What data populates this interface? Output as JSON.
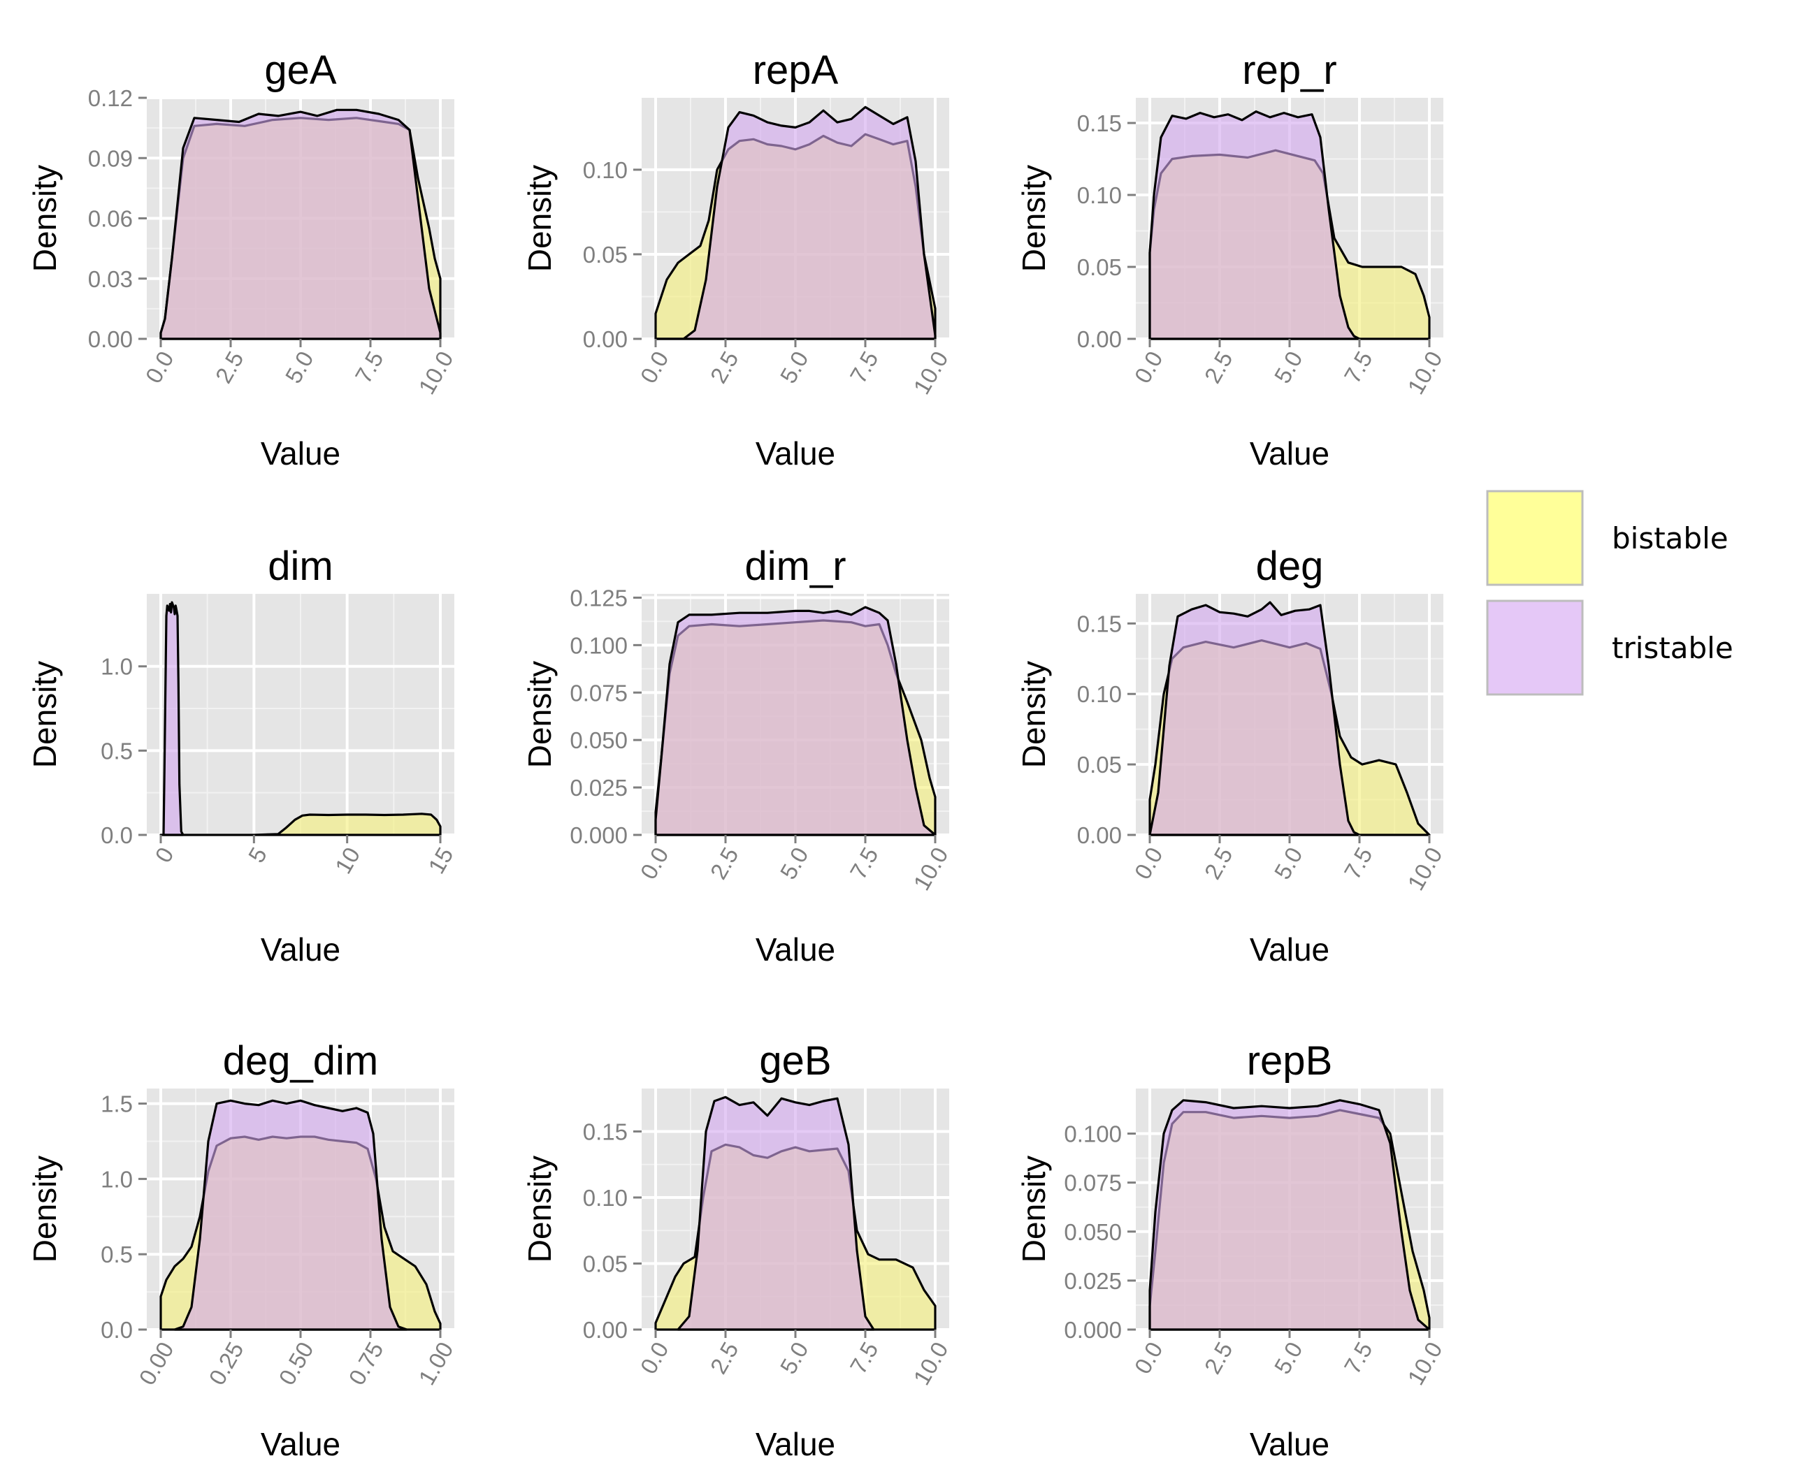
{
  "legend": {
    "position": "right",
    "items": [
      {
        "label": "bistable",
        "color": "#ffff99"
      },
      {
        "label": "tristable",
        "color": "#e5c8f7"
      }
    ]
  },
  "chart_data": [
    {
      "type": "area",
      "title": "geA",
      "xlabel": "Value",
      "ylabel": "Density",
      "xlim": [
        -0.5,
        10.5
      ],
      "ylim": [
        0,
        0.12
      ],
      "xticks": [
        "0.0",
        "2.5",
        "5.0",
        "7.5",
        "10.0"
      ],
      "yticks": [
        "0.00",
        "0.03",
        "0.06",
        "0.09",
        "0.12"
      ],
      "series": [
        {
          "name": "bistable",
          "color": "#f5f07a",
          "x": [
            0,
            0.15,
            0.4,
            0.8,
            1.2,
            2,
            3,
            4,
            5,
            6,
            7,
            8,
            8.5,
            8.9,
            9.2,
            9.6,
            9.8,
            10
          ],
          "y": [
            0.003,
            0.01,
            0.04,
            0.09,
            0.106,
            0.107,
            0.106,
            0.109,
            0.11,
            0.109,
            0.11,
            0.108,
            0.107,
            0.104,
            0.08,
            0.055,
            0.04,
            0.03
          ]
        },
        {
          "name": "tristable",
          "color": "#d2a6ee",
          "x": [
            0,
            0.15,
            0.4,
            0.8,
            1.2,
            2,
            2.8,
            3.5,
            4.2,
            5,
            5.6,
            6.3,
            7,
            7.8,
            8.5,
            8.9,
            9.2,
            9.6,
            10
          ],
          "y": [
            0.003,
            0.01,
            0.04,
            0.095,
            0.11,
            0.109,
            0.108,
            0.112,
            0.111,
            0.113,
            0.111,
            0.114,
            0.114,
            0.112,
            0.109,
            0.104,
            0.07,
            0.025,
            0.003
          ]
        }
      ]
    },
    {
      "type": "area",
      "title": "repA",
      "xlabel": "Value",
      "ylabel": "Density",
      "xlim": [
        -0.5,
        10.5
      ],
      "ylim": [
        0,
        0.1425
      ],
      "xticks": [
        "0.0",
        "2.5",
        "5.0",
        "7.5",
        "10.0"
      ],
      "yticks": [
        "0.00",
        "0.05",
        "0.10"
      ],
      "series": [
        {
          "name": "bistable",
          "color": "#f5f07a",
          "x": [
            0,
            0.4,
            0.8,
            1.2,
            1.6,
            1.9,
            2.2,
            2.6,
            3,
            3.5,
            4,
            4.5,
            5,
            5.5,
            6,
            6.5,
            7,
            7.5,
            8,
            8.5,
            9,
            9.3,
            9.6,
            10
          ],
          "y": [
            0.015,
            0.035,
            0.045,
            0.05,
            0.055,
            0.07,
            0.1,
            0.112,
            0.117,
            0.118,
            0.115,
            0.114,
            0.112,
            0.115,
            0.12,
            0.116,
            0.114,
            0.121,
            0.118,
            0.115,
            0.117,
            0.09,
            0.05,
            0.018
          ]
        },
        {
          "name": "tristable",
          "color": "#d2a6ee",
          "x": [
            0,
            1,
            1.4,
            1.8,
            2.2,
            2.6,
            3,
            3.5,
            4,
            4.5,
            5,
            5.5,
            6,
            6.5,
            7,
            7.5,
            8,
            8.5,
            9,
            9.3,
            9.6,
            10
          ],
          "y": [
            0,
            0,
            0.005,
            0.035,
            0.09,
            0.125,
            0.134,
            0.132,
            0.128,
            0.126,
            0.125,
            0.128,
            0.135,
            0.128,
            0.13,
            0.137,
            0.132,
            0.127,
            0.131,
            0.105,
            0.05,
            0.002
          ]
        }
      ]
    },
    {
      "type": "area",
      "title": "rep_r",
      "xlabel": "Value",
      "ylabel": "Density",
      "xlim": [
        -0.5,
        10.5
      ],
      "ylim": [
        0,
        0.1675
      ],
      "xticks": [
        "0.0",
        "2.5",
        "5.0",
        "7.5",
        "10.0"
      ],
      "yticks": [
        "0.00",
        "0.05",
        "0.10",
        "0.15"
      ],
      "series": [
        {
          "name": "bistable",
          "color": "#f5f07a",
          "x": [
            0,
            0.15,
            0.4,
            0.8,
            1.5,
            2.5,
            3.5,
            4.5,
            5.3,
            5.9,
            6.2,
            6.6,
            7.1,
            7.6,
            8.3,
            9,
            9.5,
            9.8,
            10
          ],
          "y": [
            0.06,
            0.09,
            0.115,
            0.125,
            0.127,
            0.128,
            0.126,
            0.131,
            0.127,
            0.124,
            0.115,
            0.07,
            0.053,
            0.05,
            0.05,
            0.05,
            0.045,
            0.03,
            0.015
          ]
        },
        {
          "name": "tristable",
          "color": "#d2a6ee",
          "x": [
            0,
            0.15,
            0.4,
            0.8,
            1.3,
            1.8,
            2.3,
            2.8,
            3.3,
            3.8,
            4.3,
            4.8,
            5.3,
            5.8,
            6.1,
            6.4,
            6.8,
            7.1,
            7.3,
            7.5
          ],
          "y": [
            0.06,
            0.1,
            0.14,
            0.155,
            0.153,
            0.157,
            0.154,
            0.156,
            0.152,
            0.158,
            0.154,
            0.157,
            0.154,
            0.156,
            0.14,
            0.09,
            0.03,
            0.008,
            0.002,
            0
          ]
        }
      ]
    },
    {
      "type": "area",
      "title": "dim",
      "xlabel": "Value",
      "ylabel": "Density",
      "xlim": [
        -0.75,
        15.75
      ],
      "ylim": [
        0,
        1.43
      ],
      "xticks": [
        "0",
        "5",
        "10",
        "15"
      ],
      "yticks": [
        "0.0",
        "0.5",
        "1.0"
      ],
      "series": [
        {
          "name": "bistable",
          "color": "#f5f07a",
          "x": [
            0,
            1,
            5,
            6.3,
            6.7,
            7.2,
            7.6,
            8,
            9,
            10,
            11,
            12,
            13,
            14,
            14.5,
            14.8,
            15
          ],
          "y": [
            0,
            0,
            0,
            0.005,
            0.04,
            0.09,
            0.115,
            0.12,
            0.118,
            0.12,
            0.12,
            0.118,
            0.12,
            0.125,
            0.12,
            0.09,
            0.05
          ]
        },
        {
          "name": "tristable",
          "color": "#d2a6ee",
          "x": [
            0.15,
            0.2,
            0.3,
            0.35,
            0.45,
            0.5,
            0.55,
            0.6,
            0.7,
            0.75,
            0.8,
            0.85,
            0.9,
            0.95,
            1,
            1.1,
            1.2
          ],
          "y": [
            0,
            0.4,
            1.3,
            1.36,
            1.33,
            1.37,
            1.32,
            1.38,
            1.35,
            1.31,
            1.36,
            1.33,
            1.3,
            0.9,
            0.3,
            0.02,
            0
          ]
        }
      ]
    },
    {
      "type": "area",
      "title": "dim_r",
      "xlabel": "Value",
      "ylabel": "Density",
      "xlim": [
        -0.5,
        10.5
      ],
      "ylim": [
        0,
        0.127
      ],
      "xticks": [
        "0.0",
        "2.5",
        "5.0",
        "7.5",
        "10.0"
      ],
      "yticks": [
        "0.000",
        "0.025",
        "0.050",
        "0.075",
        "0.100",
        "0.125"
      ],
      "series": [
        {
          "name": "bistable",
          "color": "#f5f07a",
          "x": [
            0,
            0.2,
            0.5,
            0.8,
            1.2,
            2,
            3,
            4,
            5,
            6,
            7,
            7.5,
            8,
            8.3,
            8.6,
            9,
            9.5,
            9.8,
            10
          ],
          "y": [
            0.012,
            0.04,
            0.085,
            0.105,
            0.11,
            0.111,
            0.11,
            0.111,
            0.112,
            0.113,
            0.112,
            0.11,
            0.111,
            0.1,
            0.085,
            0.07,
            0.05,
            0.03,
            0.02
          ]
        },
        {
          "name": "tristable",
          "color": "#d2a6ee",
          "x": [
            0,
            0.2,
            0.5,
            0.8,
            1.2,
            2,
            3,
            4,
            5,
            5.5,
            6,
            6.5,
            7,
            7.5,
            8,
            8.3,
            8.6,
            9,
            9.3,
            9.6,
            10
          ],
          "y": [
            0.008,
            0.04,
            0.09,
            0.112,
            0.116,
            0.116,
            0.117,
            0.117,
            0.118,
            0.118,
            0.117,
            0.118,
            0.116,
            0.12,
            0.117,
            0.113,
            0.09,
            0.05,
            0.025,
            0.005,
            0
          ]
        }
      ]
    },
    {
      "type": "area",
      "title": "deg",
      "xlabel": "Value",
      "ylabel": "Density",
      "xlim": [
        -0.5,
        10.5
      ],
      "ylim": [
        0,
        0.171
      ],
      "xticks": [
        "0.0",
        "2.5",
        "5.0",
        "7.5",
        "10.0"
      ],
      "yticks": [
        "0.00",
        "0.05",
        "0.10",
        "0.15"
      ],
      "series": [
        {
          "name": "bistable",
          "color": "#f5f07a",
          "x": [
            0,
            0.2,
            0.5,
            0.8,
            1.2,
            2,
            3,
            4,
            5,
            5.6,
            6.1,
            6.5,
            6.8,
            7.2,
            7.6,
            8.2,
            8.8,
            9.2,
            9.6,
            10
          ],
          "y": [
            0.025,
            0.05,
            0.1,
            0.125,
            0.133,
            0.137,
            0.133,
            0.138,
            0.133,
            0.136,
            0.132,
            0.1,
            0.07,
            0.055,
            0.05,
            0.053,
            0.05,
            0.03,
            0.008,
            0
          ]
        },
        {
          "name": "tristable",
          "color": "#d2a6ee",
          "x": [
            0,
            0.3,
            0.7,
            1,
            1.5,
            2,
            2.5,
            3,
            3.5,
            4,
            4.3,
            4.7,
            5.2,
            5.7,
            6.1,
            6.4,
            6.8,
            7.1,
            7.3,
            7.5
          ],
          "y": [
            0,
            0.03,
            0.12,
            0.155,
            0.16,
            0.163,
            0.158,
            0.157,
            0.155,
            0.16,
            0.165,
            0.156,
            0.159,
            0.16,
            0.163,
            0.12,
            0.05,
            0.01,
            0.002,
            0
          ]
        }
      ]
    },
    {
      "type": "area",
      "title": "deg_dim",
      "xlabel": "Value",
      "ylabel": "Density",
      "xlim": [
        -0.05,
        1.05
      ],
      "ylim": [
        0,
        1.6
      ],
      "xticks": [
        "0.00",
        "0.25",
        "0.50",
        "0.75",
        "1.00"
      ],
      "yticks": [
        "0.0",
        "0.5",
        "1.0",
        "1.5"
      ],
      "series": [
        {
          "name": "bistable",
          "color": "#f5f07a",
          "x": [
            0,
            0.02,
            0.05,
            0.08,
            0.11,
            0.14,
            0.17,
            0.2,
            0.25,
            0.3,
            0.35,
            0.4,
            0.45,
            0.5,
            0.55,
            0.6,
            0.65,
            0.7,
            0.74,
            0.77,
            0.8,
            0.83,
            0.87,
            0.91,
            0.95,
            0.98,
            1
          ],
          "y": [
            0.22,
            0.33,
            0.42,
            0.47,
            0.55,
            0.75,
            1.05,
            1.22,
            1.27,
            1.28,
            1.26,
            1.28,
            1.27,
            1.28,
            1.28,
            1.26,
            1.25,
            1.24,
            1.2,
            1.0,
            0.68,
            0.52,
            0.47,
            0.42,
            0.3,
            0.12,
            0.04
          ]
        },
        {
          "name": "tristable",
          "color": "#d2a6ee",
          "x": [
            0.05,
            0.08,
            0.11,
            0.14,
            0.17,
            0.2,
            0.25,
            0.3,
            0.35,
            0.4,
            0.45,
            0.5,
            0.55,
            0.6,
            0.65,
            0.7,
            0.74,
            0.76,
            0.79,
            0.82,
            0.85,
            0.88
          ],
          "y": [
            0,
            0.02,
            0.15,
            0.6,
            1.25,
            1.5,
            1.52,
            1.5,
            1.49,
            1.52,
            1.5,
            1.52,
            1.49,
            1.47,
            1.45,
            1.47,
            1.44,
            1.3,
            0.6,
            0.15,
            0.02,
            0
          ]
        }
      ]
    },
    {
      "type": "area",
      "title": "geB",
      "xlabel": "Value",
      "ylabel": "Density",
      "xlim": [
        -0.5,
        10.5
      ],
      "ylim": [
        0,
        0.1825
      ],
      "xticks": [
        "0.0",
        "2.5",
        "5.0",
        "7.5",
        "10.0"
      ],
      "yticks": [
        "0.00",
        "0.05",
        "0.10",
        "0.15"
      ],
      "series": [
        {
          "name": "bistable",
          "color": "#f5f07a",
          "x": [
            0,
            0.3,
            0.7,
            1,
            1.4,
            1.7,
            2,
            2.5,
            3,
            3.5,
            4,
            4.5,
            5,
            5.5,
            6,
            6.5,
            6.9,
            7.2,
            7.6,
            8,
            8.6,
            9.2,
            9.6,
            10
          ],
          "y": [
            0.005,
            0.02,
            0.04,
            0.05,
            0.055,
            0.1,
            0.135,
            0.14,
            0.138,
            0.132,
            0.13,
            0.135,
            0.138,
            0.135,
            0.136,
            0.137,
            0.12,
            0.075,
            0.057,
            0.053,
            0.053,
            0.047,
            0.03,
            0.018
          ]
        },
        {
          "name": "tristable",
          "color": "#d2a6ee",
          "x": [
            0.8,
            1.2,
            1.5,
            1.8,
            2.1,
            2.5,
            3,
            3.5,
            4,
            4.5,
            5,
            5.5,
            6,
            6.5,
            6.9,
            7.2,
            7.5,
            7.8
          ],
          "y": [
            0,
            0.01,
            0.06,
            0.15,
            0.173,
            0.176,
            0.17,
            0.172,
            0.162,
            0.175,
            0.172,
            0.17,
            0.173,
            0.175,
            0.14,
            0.06,
            0.01,
            0
          ]
        }
      ]
    },
    {
      "type": "area",
      "title": "repB",
      "xlabel": "Value",
      "ylabel": "Density",
      "xlim": [
        -0.5,
        10.5
      ],
      "ylim": [
        0,
        0.123
      ],
      "xticks": [
        "0.0",
        "2.5",
        "5.0",
        "7.5",
        "10.0"
      ],
      "yticks": [
        "0.000",
        "0.025",
        "0.050",
        "0.075",
        "0.100"
      ],
      "series": [
        {
          "name": "bistable",
          "color": "#f5f07a",
          "x": [
            0,
            0.2,
            0.5,
            0.8,
            1.2,
            2,
            3,
            4,
            5,
            6,
            6.8,
            7.5,
            8.2,
            8.6,
            9,
            9.4,
            9.8,
            10
          ],
          "y": [
            0.012,
            0.04,
            0.085,
            0.105,
            0.111,
            0.111,
            0.108,
            0.109,
            0.108,
            0.109,
            0.112,
            0.11,
            0.108,
            0.1,
            0.07,
            0.04,
            0.02,
            0.006
          ]
        },
        {
          "name": "tristable",
          "color": "#d2a6ee",
          "x": [
            0,
            0.2,
            0.5,
            0.8,
            1.2,
            2,
            3,
            4,
            5,
            6,
            6.8,
            7.5,
            8.2,
            8.6,
            9,
            9.3,
            9.6,
            10
          ],
          "y": [
            0.02,
            0.06,
            0.1,
            0.112,
            0.117,
            0.116,
            0.113,
            0.114,
            0.113,
            0.114,
            0.117,
            0.115,
            0.112,
            0.095,
            0.05,
            0.02,
            0.005,
            0
          ]
        }
      ]
    }
  ]
}
